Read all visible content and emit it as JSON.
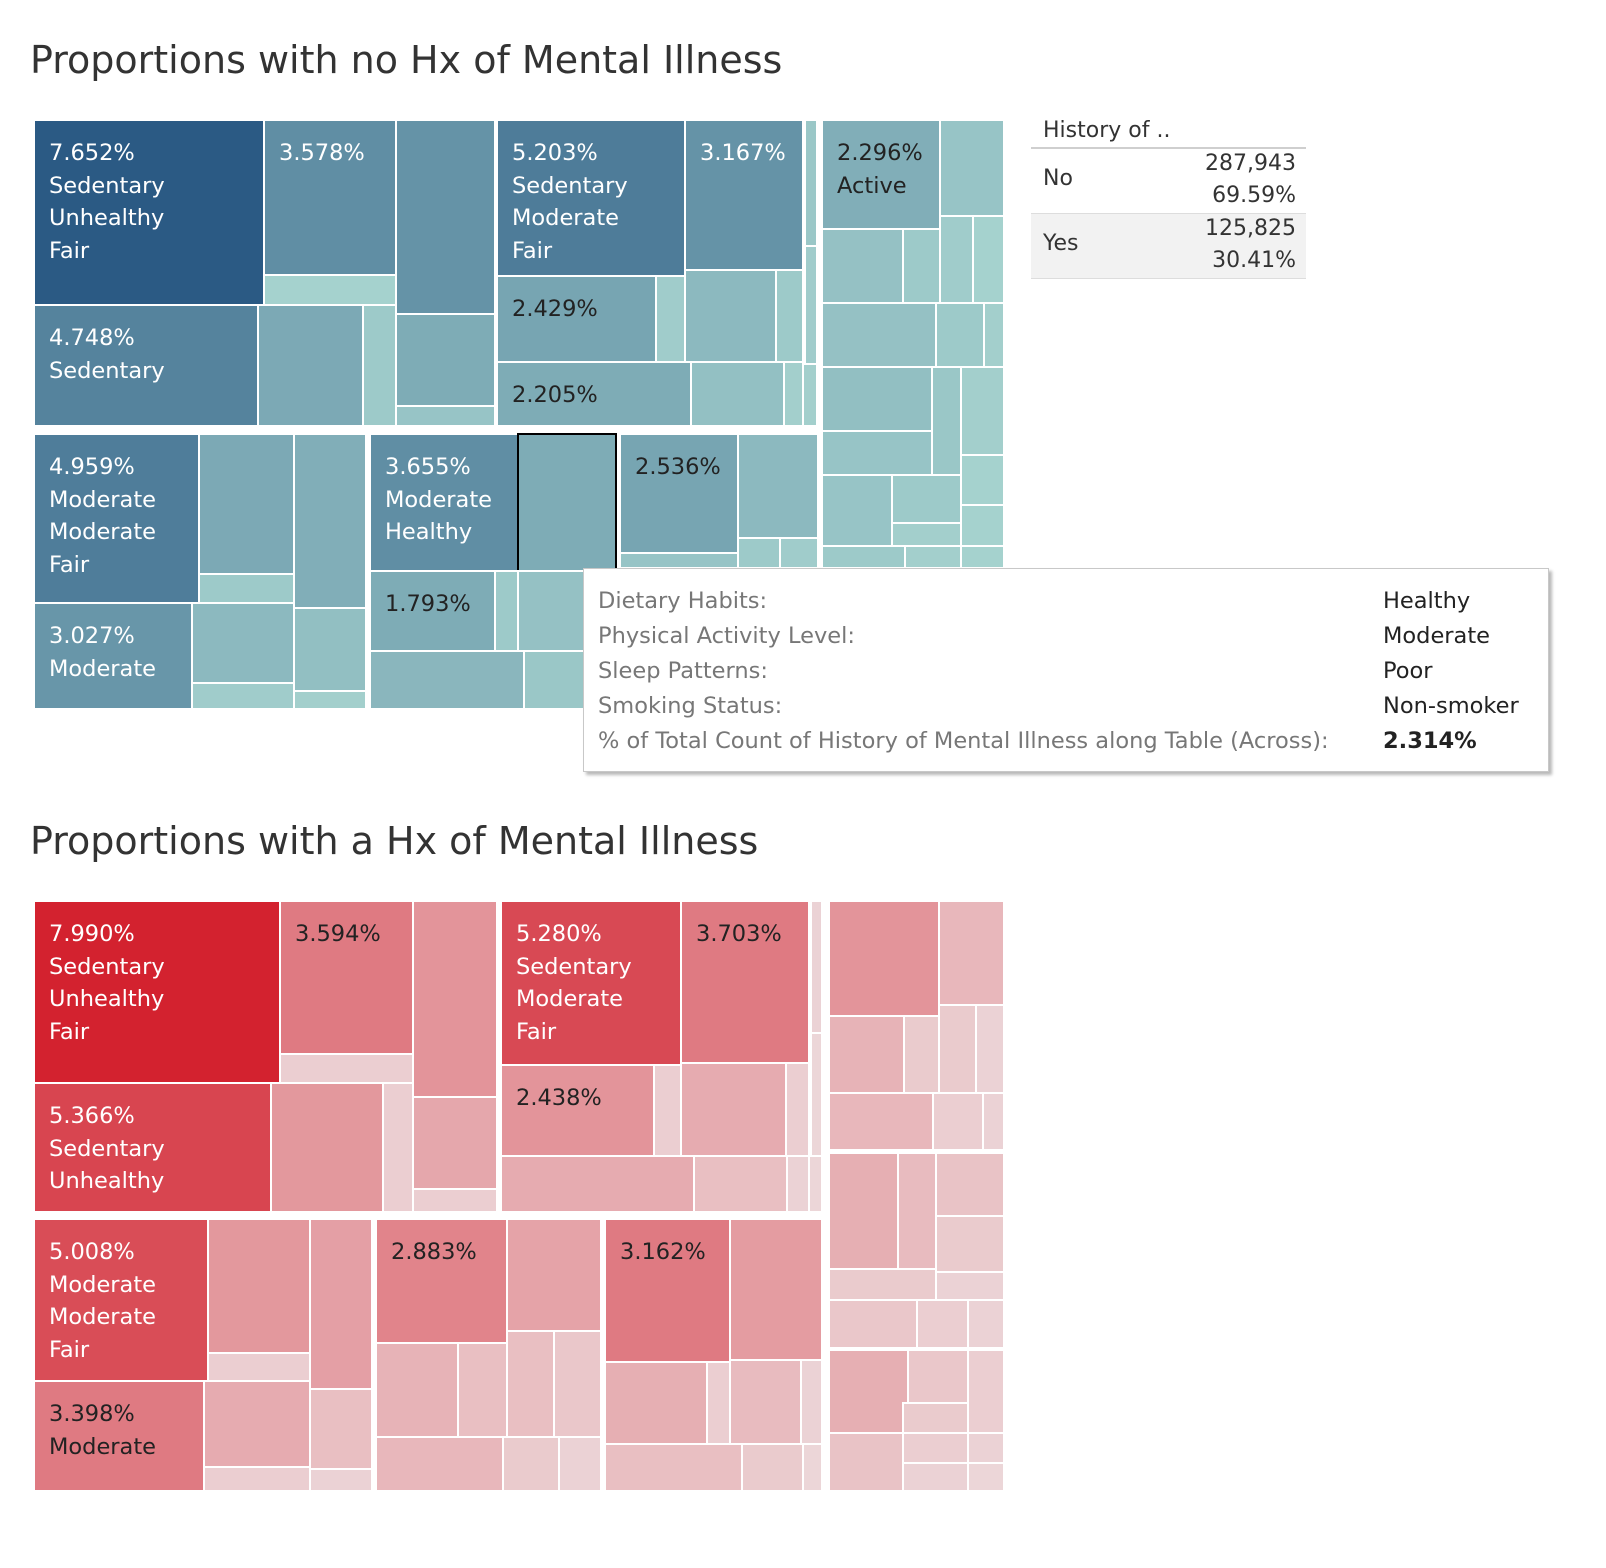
{
  "titles": {
    "top": "Proportions with no Hx of Mental Illness",
    "bottom": "Proportions with a Hx of Mental Illness"
  },
  "legend": {
    "header": "History of ..",
    "rows": [
      {
        "label": "No",
        "count": "287,943",
        "percent": "69.59%"
      },
      {
        "label": "Yes",
        "count": "125,825",
        "percent": "30.41%"
      }
    ]
  },
  "tooltip": {
    "rows": [
      {
        "key": "Dietary Habits:",
        "value": "Healthy"
      },
      {
        "key": "Physical Activity Level:",
        "value": "Moderate"
      },
      {
        "key": "Sleep Patterns:",
        "value": "Poor"
      },
      {
        "key": "Smoking Status:",
        "value": "Non-smoker"
      },
      {
        "key": "% of Total Count of History of Mental Illness along Table (Across):",
        "value": "2.314%"
      }
    ]
  },
  "colors": {
    "blue_scale": [
      "#b6e2d8",
      "#2b5a84"
    ],
    "red_scale": [
      "#eee6e7",
      "#d3222f"
    ]
  },
  "chart_data": [
    {
      "type": "treemap",
      "title": "Proportions with no Hx of Mental Illness",
      "labeled_cells": [
        {
          "value": 7.652,
          "text": [
            "7.652%",
            "Sedentary",
            "Unhealthy",
            "Fair"
          ]
        },
        {
          "value": 3.578,
          "text": [
            "3.578%"
          ]
        },
        {
          "value": 5.203,
          "text": [
            "5.203%",
            "Sedentary",
            "Moderate",
            "Fair"
          ]
        },
        {
          "value": 3.167,
          "text": [
            "3.167%"
          ]
        },
        {
          "value": 2.296,
          "text": [
            "2.296%",
            "Active"
          ]
        },
        {
          "value": 4.748,
          "text": [
            "4.748%",
            "Sedentary"
          ]
        },
        {
          "value": 2.429,
          "text": [
            "2.429%"
          ]
        },
        {
          "value": 2.205,
          "text": [
            "2.205%"
          ]
        },
        {
          "value": 4.959,
          "text": [
            "4.959%",
            "Moderate",
            "Moderate",
            "Fair"
          ]
        },
        {
          "value": 3.655,
          "text": [
            "3.655%",
            "Moderate",
            "Healthy"
          ]
        },
        {
          "value": 2.536,
          "text": [
            "2.536%"
          ]
        },
        {
          "value": 1.793,
          "text": [
            "1.793%"
          ]
        },
        {
          "value": 3.027,
          "text": [
            "3.027%",
            "Moderate"
          ]
        }
      ],
      "selected_cell": {
        "Dietary Habits": "Healthy",
        "Physical Activity Level": "Moderate",
        "Sleep Patterns": "Poor",
        "Smoking Status": "Non-smoker",
        "value": 2.314
      }
    },
    {
      "type": "treemap",
      "title": "Proportions with a Hx of Mental Illness",
      "labeled_cells": [
        {
          "value": 7.99,
          "text": [
            "7.990%",
            "Sedentary",
            "Unhealthy",
            "Fair"
          ]
        },
        {
          "value": 3.594,
          "text": [
            "3.594%"
          ]
        },
        {
          "value": 5.28,
          "text": [
            "5.280%",
            "Sedentary",
            "Moderate",
            "Fair"
          ]
        },
        {
          "value": 3.703,
          "text": [
            "3.703%"
          ]
        },
        {
          "value": 5.366,
          "text": [
            "5.366%",
            "Sedentary",
            "Unhealthy"
          ]
        },
        {
          "value": 2.438,
          "text": [
            "2.438%"
          ]
        },
        {
          "value": 5.008,
          "text": [
            "5.008%",
            "Moderate",
            "Moderate",
            "Fair"
          ]
        },
        {
          "value": 2.883,
          "text": [
            "2.883%"
          ]
        },
        {
          "value": 3.162,
          "text": [
            "3.162%"
          ]
        },
        {
          "value": 3.398,
          "text": [
            "3.398%",
            "Moderate"
          ]
        }
      ]
    }
  ]
}
